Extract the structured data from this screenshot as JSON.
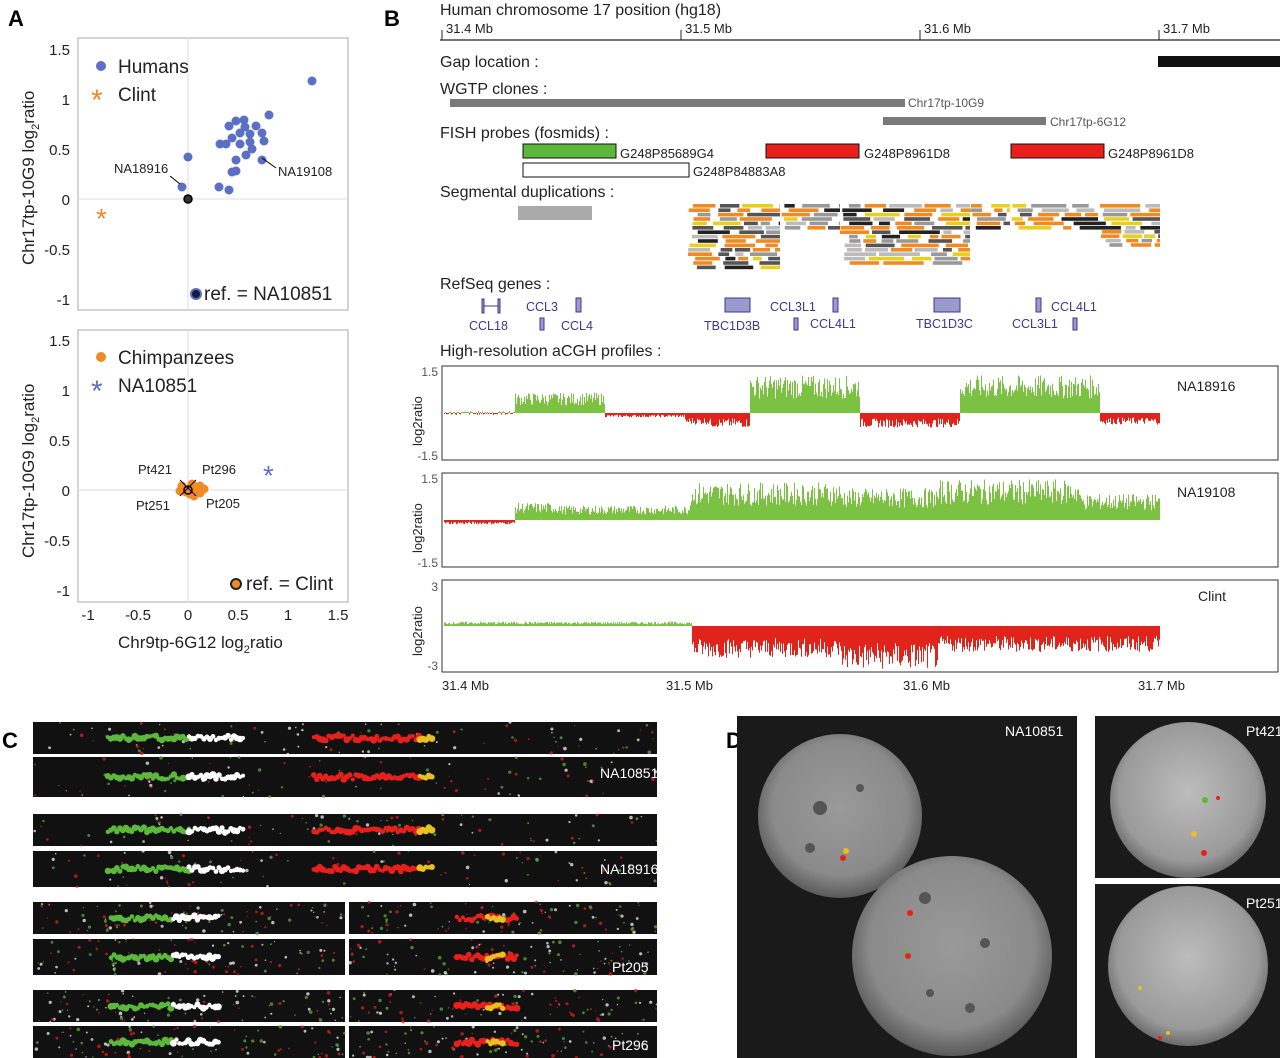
{
  "panels": {
    "A": {
      "letter": "A",
      "top": {
        "ylabel_main": "Chr17tp-10G9 log",
        "ylabel_sub": "2",
        "ylabel_end": "ratio",
        "yticks": [
          "1.5",
          "1",
          "0.5",
          "0",
          "-0.5",
          "-1"
        ],
        "legend": [
          {
            "label": "Humans",
            "marker": "dot",
            "color": "#5b6fc4"
          },
          {
            "label": "Clint",
            "marker": "asterisk",
            "color": "#f08a24"
          }
        ],
        "ref_label": "ref. = NA10851",
        "point_labels": [
          "NA18916",
          "NA19108"
        ]
      },
      "bottom": {
        "ylabel_main": "Chr17tp-10G9 log",
        "ylabel_sub": "2",
        "ylabel_end": "ratio",
        "yticks": [
          "1.5",
          "1",
          "0.5",
          "0",
          "-0.5",
          "-1"
        ],
        "xticks": [
          "-1",
          "-0.5",
          "0",
          "0.5",
          "1",
          "1.5"
        ],
        "xlabel_main": "Chr9tp-6G12 log",
        "xlabel_sub": "2",
        "xlabel_end": "ratio",
        "legend": [
          {
            "label": "Chimpanzees",
            "marker": "dot",
            "color": "#f08a24"
          },
          {
            "label": "NA10851",
            "marker": "asterisk",
            "color": "#5b6fc4"
          }
        ],
        "ref_label": "ref. = Clint",
        "point_labels": [
          "Pt421",
          "Pt296",
          "Pt251",
          "Pt205"
        ]
      }
    },
    "B": {
      "letter": "B",
      "title": "Human chromosome 17 position (hg18)",
      "ruler_ticks": [
        "31.4 Mb",
        "31.5 Mb",
        "31.6 Mb",
        "31.7 Mb"
      ],
      "tracks": {
        "gap": "Gap location :",
        "wgtp": "WGTP clones :",
        "fish": "FISH probes (fosmids) :",
        "segdup": "Segmental duplications :",
        "refseq": "RefSeq genes :",
        "acgh": "High-resolution aCGH profiles :"
      },
      "wgtp_clones": [
        "Chr17tp-10G9",
        "Chr17tp-6G12"
      ],
      "fish_probes": [
        "G248P85689G4",
        "G248P84883A8",
        "G248P8961D8",
        "G248P8961D8"
      ],
      "genes": [
        "CCL18",
        "CCL3",
        "CCL4",
        "TBC1D3B",
        "CCL3L1",
        "CCL4L1",
        "TBC1D3C",
        "CCL3L1",
        "CCL4L1"
      ],
      "profiles": [
        {
          "sample": "NA18916",
          "ymax": "1.5",
          "ymin": "-1.5",
          "ylabel": "log2ratio"
        },
        {
          "sample": "NA19108",
          "ymax": "1.5",
          "ymin": "-1.5",
          "ylabel": "log2ratio"
        },
        {
          "sample": "Clint",
          "ymax": "3",
          "ymin": "-3",
          "ylabel": "log2ratio"
        }
      ],
      "bottom_ticks": [
        "31.4 Mb",
        "31.5 Mb",
        "31.6 Mb",
        "31.7 Mb"
      ]
    },
    "C": {
      "letter": "C",
      "samples": [
        "NA10851",
        "NA18916",
        "Pt205",
        "Pt296"
      ]
    },
    "D": {
      "letter": "D",
      "samples": [
        "NA10851",
        "Pt421",
        "Pt251"
      ]
    }
  },
  "colors": {
    "human_blue": "#5b6fc4",
    "chimp_orange": "#f08a24",
    "gain_green": "#7cc242",
    "loss_red": "#e0241b",
    "probe_green": "#5cb83c",
    "probe_red": "#e8201c",
    "clone_gray": "#7a7a7a"
  }
}
